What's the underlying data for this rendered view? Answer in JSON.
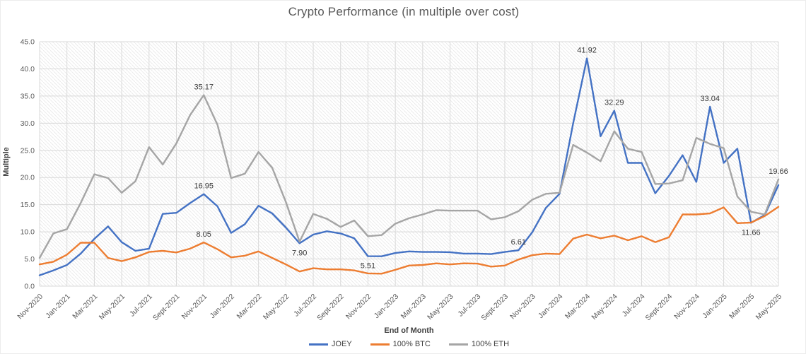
{
  "title": "Crypto Performance (in multiple over cost)",
  "axes": {
    "y_title": "Multiple",
    "x_title": "End of Month",
    "y_min": 0,
    "y_max": 45,
    "y_step": 5,
    "y_tick_labels": [
      "0.0",
      "5.0",
      "10.0",
      "15.0",
      "20.0",
      "25.0",
      "30.0",
      "35.0",
      "40.0",
      "45.0"
    ],
    "x_tick_labels": [
      "Nov-2020",
      "Jan-2021",
      "Mar-2021",
      "May-2021",
      "Jul-2021",
      "Sept-2021",
      "Nov-2021",
      "Jan-2022",
      "Mar-2022",
      "May-2022",
      "Jul-2022",
      "Sept-2022",
      "Nov-2022",
      "Jan-2023",
      "Mar-2023",
      "May-2023",
      "Jul-2023",
      "Sept-2023",
      "Nov-2023",
      "Jan-2024",
      "Mar-2024",
      "May-2024",
      "Jul-2024",
      "Sept-2024",
      "Nov-2024",
      "Jan-2025",
      "Mar-2025",
      "May-2025"
    ],
    "x_tick_every_n_points": 2
  },
  "colors": {
    "joey": "#4472C4",
    "btc": "#ED7D31",
    "eth": "#A5A5A5",
    "gridline": "#D9D9D9",
    "hatch": "#EBEBEB",
    "tick_text": "#595959",
    "annotation_text": "#3b3b3b",
    "title_text": "#595959"
  },
  "chart_data": {
    "type": "line",
    "x_unit": "month",
    "x_range": [
      "Nov-2020",
      "May-2025"
    ],
    "points_count": 55,
    "grid": "on",
    "legend_position": "bottom",
    "ylim": [
      0,
      45
    ],
    "series": [
      {
        "name": "JOEY",
        "color": "#4472C4",
        "values": [
          2.0,
          2.9,
          3.9,
          6.0,
          8.7,
          11.0,
          8.1,
          6.5,
          6.9,
          13.3,
          13.5,
          15.3,
          16.95,
          14.7,
          9.8,
          11.4,
          14.8,
          13.4,
          10.8,
          7.9,
          9.5,
          10.1,
          9.7,
          8.8,
          5.51,
          5.5,
          6.1,
          6.4,
          6.3,
          6.3,
          6.25,
          6.0,
          6.0,
          5.9,
          6.3,
          6.61,
          9.9,
          14.4,
          17.0,
          30.0,
          41.92,
          27.6,
          32.29,
          22.7,
          22.7,
          17.1,
          20.3,
          24.1,
          19.2,
          33.04,
          22.7,
          25.3,
          11.66,
          13.1,
          18.6
        ]
      },
      {
        "name": "100% BTC",
        "color": "#ED7D31",
        "values": [
          4.0,
          4.5,
          5.8,
          8.0,
          8.0,
          5.2,
          4.6,
          5.3,
          6.3,
          6.5,
          6.2,
          6.9,
          8.05,
          6.8,
          5.3,
          5.6,
          6.4,
          5.2,
          4.0,
          2.7,
          3.3,
          3.1,
          3.1,
          2.9,
          2.35,
          2.3,
          3.0,
          3.8,
          3.9,
          4.2,
          4.0,
          4.2,
          4.15,
          3.6,
          3.8,
          4.9,
          5.7,
          6.0,
          5.9,
          8.75,
          9.5,
          8.8,
          9.3,
          8.45,
          9.2,
          8.1,
          9.0,
          13.2,
          13.2,
          13.4,
          14.5,
          11.6,
          11.7,
          12.9,
          14.6
        ]
      },
      {
        "name": "100% ETH",
        "color": "#A5A5A5",
        "values": [
          5.2,
          9.7,
          10.5,
          15.3,
          20.6,
          19.9,
          17.2,
          19.3,
          25.6,
          22.4,
          26.3,
          31.5,
          35.17,
          29.7,
          19.9,
          20.7,
          24.7,
          21.8,
          15.5,
          8.2,
          13.3,
          12.4,
          10.9,
          12.1,
          9.2,
          9.4,
          11.5,
          12.5,
          13.2,
          14.0,
          13.9,
          13.9,
          13.9,
          12.3,
          12.7,
          13.8,
          15.9,
          17.0,
          17.2,
          26.0,
          24.6,
          23.0,
          28.5,
          25.3,
          24.7,
          18.8,
          18.9,
          19.5,
          27.3,
          26.2,
          25.4,
          16.5,
          13.7,
          13.2,
          19.66
        ]
      }
    ],
    "annotations": [
      {
        "text": "35.17",
        "series": "100% ETH",
        "month": "Nov-2021",
        "index": 12,
        "placement": "above"
      },
      {
        "text": "16.95",
        "series": "JOEY",
        "month": "Nov-2021",
        "index": 12,
        "placement": "above"
      },
      {
        "text": "8.05",
        "series": "100% BTC",
        "month": "Nov-2021",
        "index": 12,
        "placement": "above"
      },
      {
        "text": "7.90",
        "series": "JOEY",
        "month": "Jun-2022",
        "index": 19,
        "placement": "below"
      },
      {
        "text": "5.51",
        "series": "JOEY",
        "month": "Nov-2022",
        "index": 24,
        "placement": "below"
      },
      {
        "text": "6.61",
        "series": "JOEY",
        "month": "Oct-2023",
        "index": 35,
        "placement": "above"
      },
      {
        "text": "41.92",
        "series": "JOEY",
        "month": "Mar-2024",
        "index": 40,
        "placement": "above"
      },
      {
        "text": "32.29",
        "series": "JOEY",
        "month": "May-2024",
        "index": 42,
        "placement": "above"
      },
      {
        "text": "33.04",
        "series": "JOEY",
        "month": "Dec-2024",
        "index": 49,
        "placement": "above"
      },
      {
        "text": "11.66",
        "series": "JOEY",
        "month": "Mar-2025",
        "index": 52,
        "placement": "below"
      },
      {
        "text": "19.66",
        "series": "100% ETH",
        "month": "May-2025",
        "index": 54,
        "placement": "above"
      }
    ]
  }
}
